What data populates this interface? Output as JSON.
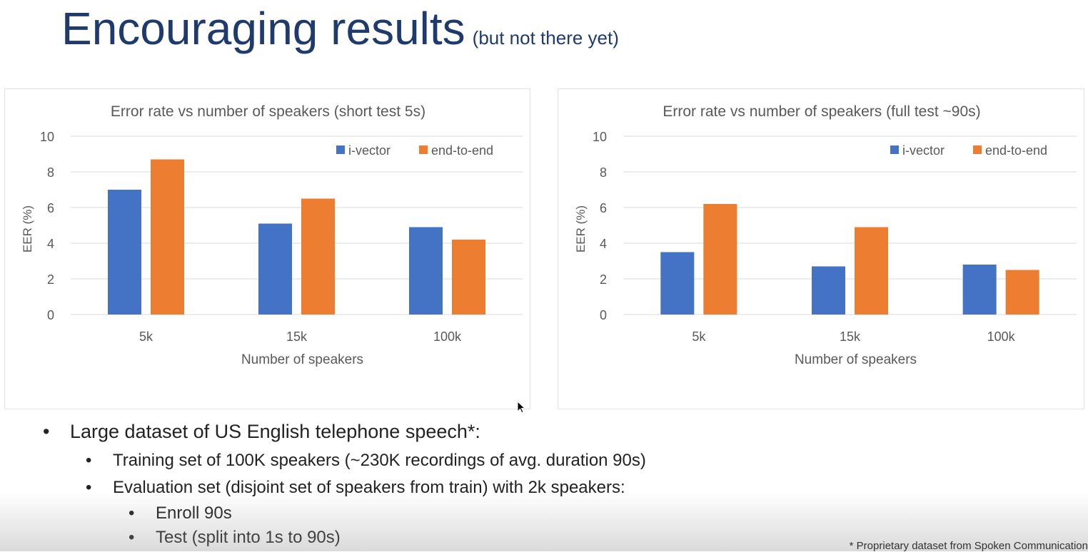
{
  "slide": {
    "title": "Encouraging results",
    "subtitle": "(but not there yet)"
  },
  "chart_data": [
    {
      "type": "bar",
      "title": "Error rate vs number of speakers (short test 5s)",
      "xlabel": "Number of speakers",
      "ylabel": "EER (%)",
      "ylim": [
        0,
        10
      ],
      "yticks": [
        "0",
        "2",
        "4",
        "6",
        "8",
        "10"
      ],
      "categories": [
        "5k",
        "15k",
        "100k"
      ],
      "series": [
        {
          "name": "i-vector",
          "values": [
            7.0,
            5.1,
            4.9
          ],
          "color": "#4472C4"
        },
        {
          "name": "end-to-end",
          "values": [
            8.7,
            6.5,
            4.2
          ],
          "color": "#ED7D31"
        }
      ],
      "grid": true,
      "legend": "top-right"
    },
    {
      "type": "bar",
      "title": "Error rate vs number of speakers (full test ~90s)",
      "xlabel": "Number of speakers",
      "ylabel": "EER (%)",
      "ylim": [
        0,
        10
      ],
      "yticks": [
        "0",
        "2",
        "4",
        "6",
        "8",
        "10"
      ],
      "categories": [
        "5k",
        "15k",
        "100k"
      ],
      "series": [
        {
          "name": "i-vector",
          "values": [
            3.5,
            2.7,
            2.8
          ],
          "color": "#4472C4"
        },
        {
          "name": "end-to-end",
          "values": [
            6.2,
            4.9,
            2.5
          ],
          "color": "#ED7D31"
        }
      ],
      "grid": true,
      "legend": "top-right"
    }
  ],
  "bullets": {
    "b1": "Large dataset of US English telephone speech*:",
    "b2": "Training set of 100K speakers (~230K recordings of avg. duration 90s)",
    "b3": "Evaluation set (disjoint set of speakers from train) with 2k speakers:",
    "b4": "Enroll 90s",
    "b5": "Test (split into 1s to 90s)",
    "dot": "•"
  },
  "footnote": "* Proprietary dataset from Spoken Communication"
}
